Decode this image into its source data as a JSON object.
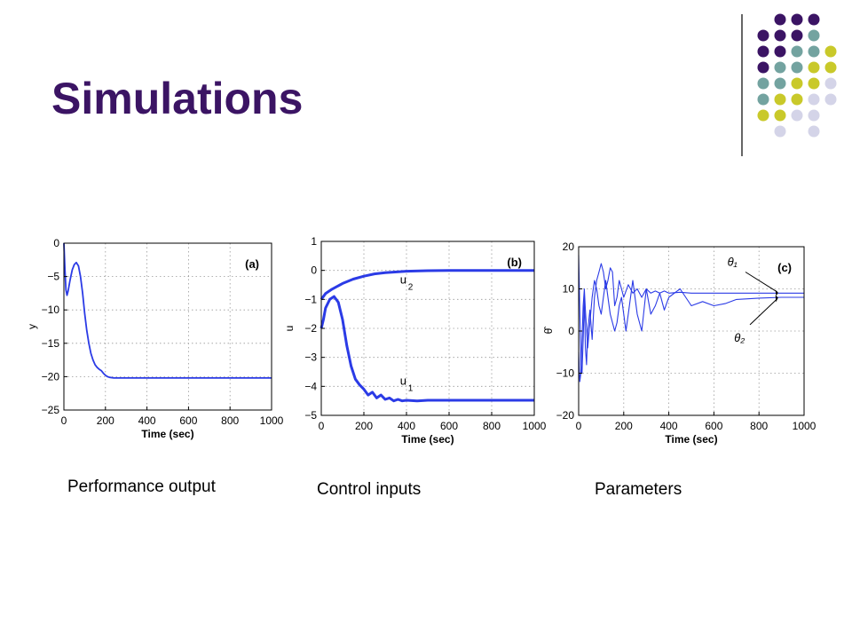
{
  "slide": {
    "title": "Simulations",
    "captions": [
      "Performance output",
      "Control inputs",
      "Parameters"
    ]
  },
  "colors": {
    "title": "#3b1464",
    "series": "#2b3be6",
    "dot_purple": "#3b1464",
    "dot_teal": "#73a3a0",
    "dot_yellow": "#c9c92a",
    "dot_lavender": "#d4d4e8"
  },
  "chart_data": [
    {
      "type": "line",
      "panel_label": "(a)",
      "xlabel": "Time (sec)",
      "ylabel": "y",
      "xlim": [
        0,
        1000
      ],
      "ylim": [
        -25,
        0
      ],
      "xticks": [
        0,
        200,
        400,
        600,
        800,
        1000
      ],
      "yticks": [
        0,
        -5,
        -10,
        -15,
        -20,
        -25
      ],
      "grid": true,
      "series": [
        {
          "x": [
            0,
            5,
            10,
            15,
            20,
            30,
            40,
            50,
            60,
            70,
            80,
            90,
            100,
            110,
            120,
            130,
            140,
            150,
            160,
            170,
            180,
            190,
            200,
            210,
            220,
            240,
            260,
            300,
            400,
            500,
            600,
            700,
            800,
            900,
            1000
          ],
          "y": [
            0,
            -4,
            -7,
            -7.8,
            -7.2,
            -5.5,
            -4,
            -3.2,
            -2.9,
            -3.4,
            -5,
            -7.5,
            -10.5,
            -13,
            -15,
            -16.5,
            -17.5,
            -18.2,
            -18.6,
            -18.9,
            -19.1,
            -19.5,
            -19.8,
            -20,
            -20.1,
            -20.2,
            -20.2,
            -20.2,
            -20.2,
            -20.2,
            -20.2,
            -20.2,
            -20.2,
            -20.2,
            -20.2
          ]
        }
      ]
    },
    {
      "type": "line",
      "panel_label": "(b)",
      "xlabel": "Time (sec)",
      "ylabel": "u",
      "xlim": [
        0,
        1000
      ],
      "ylim": [
        -5,
        1
      ],
      "xticks": [
        0,
        200,
        400,
        600,
        800,
        1000
      ],
      "yticks": [
        1,
        0,
        -1,
        -2,
        -3,
        -4,
        -5
      ],
      "grid": true,
      "series": [
        {
          "name": "u₂",
          "x": [
            0,
            20,
            50,
            100,
            150,
            200,
            250,
            300,
            400,
            500,
            600,
            700,
            800,
            900,
            1000
          ],
          "y": [
            -1.0,
            -0.8,
            -0.65,
            -0.45,
            -0.3,
            -0.2,
            -0.12,
            -0.08,
            -0.03,
            -0.01,
            0,
            0,
            0,
            0,
            0
          ]
        },
        {
          "name": "u₁",
          "x": [
            0,
            10,
            20,
            40,
            60,
            80,
            100,
            120,
            140,
            160,
            180,
            200,
            220,
            240,
            260,
            280,
            300,
            320,
            340,
            360,
            380,
            400,
            450,
            500,
            600,
            700,
            800,
            900,
            1000
          ],
          "y": [
            -2.0,
            -1.7,
            -1.3,
            -1.0,
            -0.9,
            -1.1,
            -1.7,
            -2.6,
            -3.3,
            -3.75,
            -3.95,
            -4.1,
            -4.3,
            -4.2,
            -4.4,
            -4.3,
            -4.45,
            -4.4,
            -4.5,
            -4.45,
            -4.5,
            -4.48,
            -4.5,
            -4.48,
            -4.48,
            -4.48,
            -4.48,
            -4.48,
            -4.48
          ]
        }
      ],
      "series_labels": [
        "u",
        "2",
        "u",
        "1"
      ]
    },
    {
      "type": "line",
      "panel_label": "(c)",
      "xlabel": "Time (sec)",
      "ylabel": "θ̂",
      "xlim": [
        0,
        1000
      ],
      "ylim": [
        -20,
        20
      ],
      "xticks": [
        0,
        200,
        400,
        600,
        800,
        1000
      ],
      "yticks": [
        20,
        10,
        0,
        -10,
        -20
      ],
      "grid": true,
      "annotations": [
        "θ₁",
        "θ₂"
      ],
      "series": [
        {
          "name": "θ₁",
          "x": [
            0,
            5,
            10,
            15,
            20,
            25,
            30,
            35,
            40,
            50,
            60,
            70,
            80,
            90,
            100,
            110,
            120,
            130,
            140,
            150,
            160,
            170,
            180,
            190,
            200,
            220,
            240,
            260,
            280,
            300,
            320,
            340,
            360,
            380,
            400,
            450,
            500,
            600,
            700,
            800,
            900,
            1000
          ],
          "y": [
            18,
            5,
            -8,
            -10,
            -2,
            8,
            -4,
            -8,
            0,
            5,
            -2,
            8,
            12,
            14,
            16,
            14,
            10,
            12,
            15,
            14,
            6,
            8,
            12,
            10,
            8,
            11,
            9,
            10,
            8,
            10,
            9,
            9.5,
            9,
            9.5,
            9,
            9.2,
            9,
            9,
            9,
            9,
            9,
            9
          ]
        },
        {
          "name": "θ₂",
          "x": [
            0,
            5,
            10,
            15,
            20,
            25,
            30,
            40,
            50,
            60,
            70,
            80,
            90,
            100,
            110,
            120,
            130,
            140,
            150,
            160,
            170,
            180,
            190,
            200,
            210,
            220,
            240,
            260,
            280,
            300,
            320,
            340,
            360,
            380,
            400,
            450,
            500,
            550,
            600,
            650,
            700,
            800,
            900,
            1000
          ],
          "y": [
            -5,
            -12,
            -10,
            -2,
            6,
            10,
            5,
            -4,
            2,
            8,
            12,
            10,
            6,
            4,
            8,
            12,
            8,
            4,
            2,
            0,
            2,
            6,
            8,
            4,
            0,
            4,
            12,
            4,
            0,
            10,
            4,
            6,
            9,
            5,
            8,
            10,
            6,
            7,
            6,
            6.5,
            7.5,
            7.8,
            8,
            8
          ]
        }
      ]
    }
  ]
}
